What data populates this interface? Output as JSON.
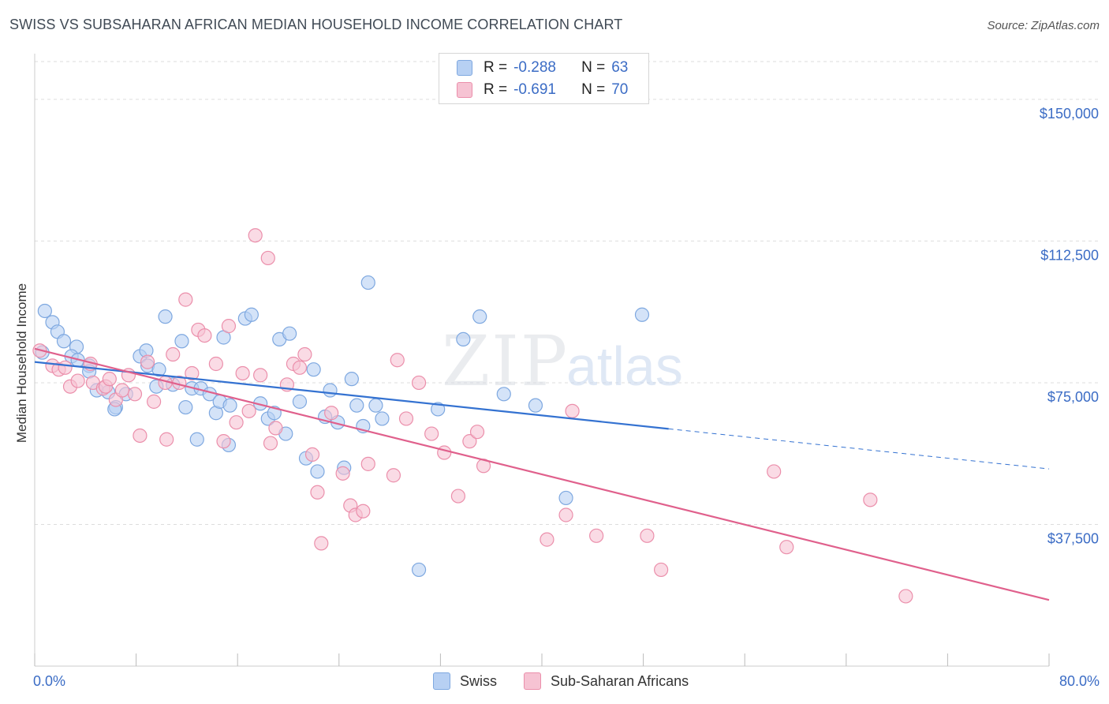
{
  "title": "SWISS VS SUBSAHARAN AFRICAN MEDIAN HOUSEHOLD INCOME CORRELATION CHART",
  "source": "Source: ZipAtlas.com",
  "watermark": {
    "zip": "ZIP",
    "atlas": "atlas"
  },
  "colors": {
    "swiss_fill": "#b7d0f3",
    "swiss_stroke": "#7ea8e0",
    "swiss_line": "#3472d1",
    "ssa_fill": "#f6c3d3",
    "ssa_stroke": "#eb8fab",
    "ssa_line": "#e0608c",
    "tick_text": "#3b6cc5",
    "grid": "#dddddd"
  },
  "legend": {
    "r_label": "R =",
    "n_label": "N =",
    "swiss": {
      "r": "-0.288",
      "n": "63"
    },
    "ssa": {
      "r": "-0.691",
      "n": "70"
    }
  },
  "bottom_legend": {
    "swiss": "Swiss",
    "ssa": "Sub-Saharan Africans"
  },
  "chart_data": {
    "type": "scatter",
    "title": "SWISS VS SUBSAHARAN AFRICAN MEDIAN HOUSEHOLD INCOME CORRELATION CHART",
    "xlabel": "",
    "ylabel": "Median Household Income",
    "xlim": [
      0,
      80
    ],
    "ylim": [
      0,
      160000
    ],
    "x_tick_labels": [
      "0.0%",
      "80.0%"
    ],
    "y_ticks": [
      37500,
      75000,
      112500,
      150000
    ],
    "y_tick_labels": [
      "$37,500",
      "$75,000",
      "$112,500",
      "$150,000"
    ],
    "grid": "horizontal dashed",
    "legend_position": "top-center",
    "series": [
      {
        "name": "Swiss",
        "r": -0.288,
        "n": 63,
        "trend": {
          "x0": 0,
          "y0": 80500,
          "x1": 50,
          "y1": 62800,
          "x_dash_end": 80,
          "y_dash_end": 52200
        },
        "points": [
          [
            0.6,
            83000
          ],
          [
            0.8,
            94000
          ],
          [
            1.4,
            91000
          ],
          [
            1.8,
            88500
          ],
          [
            2.3,
            86000
          ],
          [
            3.3,
            84500
          ],
          [
            2.9,
            82000
          ],
          [
            3.4,
            81000
          ],
          [
            4.3,
            79500
          ],
          [
            4.3,
            78000
          ],
          [
            4.9,
            73000
          ],
          [
            5.8,
            72500
          ],
          [
            6.4,
            68500
          ],
          [
            6.3,
            68000
          ],
          [
            7.2,
            72000
          ],
          [
            8.3,
            82000
          ],
          [
            8.8,
            83500
          ],
          [
            8.9,
            79500
          ],
          [
            9.8,
            78500
          ],
          [
            9.6,
            74000
          ],
          [
            10.3,
            92500
          ],
          [
            10.9,
            74500
          ],
          [
            11.6,
            86000
          ],
          [
            11.9,
            68500
          ],
          [
            12.4,
            73500
          ],
          [
            12.8,
            60000
          ],
          [
            13.1,
            73500
          ],
          [
            13.8,
            72000
          ],
          [
            14.3,
            67000
          ],
          [
            14.9,
            87000
          ],
          [
            14.6,
            70000
          ],
          [
            15.4,
            69000
          ],
          [
            15.3,
            58500
          ],
          [
            16.6,
            92000
          ],
          [
            17.1,
            93000
          ],
          [
            17.8,
            69500
          ],
          [
            18.4,
            65500
          ],
          [
            18.9,
            67000
          ],
          [
            19.3,
            86500
          ],
          [
            20.1,
            88000
          ],
          [
            19.8,
            61500
          ],
          [
            20.9,
            70000
          ],
          [
            21.4,
            55000
          ],
          [
            22.0,
            78500
          ],
          [
            22.3,
            51500
          ],
          [
            22.9,
            66000
          ],
          [
            23.3,
            73000
          ],
          [
            23.9,
            64500
          ],
          [
            24.4,
            52500
          ],
          [
            25.0,
            76000
          ],
          [
            25.4,
            69000
          ],
          [
            25.9,
            63500
          ],
          [
            26.3,
            101500
          ],
          [
            26.9,
            69000
          ],
          [
            27.4,
            65500
          ],
          [
            30.3,
            25500
          ],
          [
            31.8,
            68000
          ],
          [
            33.8,
            86500
          ],
          [
            35.1,
            92500
          ],
          [
            37.0,
            72000
          ],
          [
            39.5,
            69000
          ],
          [
            41.9,
            44500
          ],
          [
            47.9,
            93000
          ]
        ]
      },
      {
        "name": "Sub-Saharan Africans",
        "r": -0.691,
        "n": 70,
        "trend": {
          "x0": 0,
          "y0": 84000,
          "x1": 80,
          "y1": 17500
        },
        "points": [
          [
            0.4,
            83500
          ],
          [
            1.4,
            79500
          ],
          [
            1.9,
            78500
          ],
          [
            2.4,
            79000
          ],
          [
            2.8,
            74000
          ],
          [
            3.4,
            75500
          ],
          [
            4.4,
            80000
          ],
          [
            4.6,
            75000
          ],
          [
            5.4,
            73500
          ],
          [
            5.6,
            74000
          ],
          [
            5.9,
            76000
          ],
          [
            6.4,
            70500
          ],
          [
            6.9,
            73000
          ],
          [
            7.4,
            77000
          ],
          [
            7.9,
            72000
          ],
          [
            8.3,
            61000
          ],
          [
            8.9,
            80500
          ],
          [
            9.4,
            70000
          ],
          [
            10.3,
            75000
          ],
          [
            10.4,
            60000
          ],
          [
            10.9,
            82500
          ],
          [
            11.4,
            75000
          ],
          [
            11.9,
            97000
          ],
          [
            12.4,
            77500
          ],
          [
            12.9,
            89000
          ],
          [
            13.4,
            87500
          ],
          [
            14.3,
            80000
          ],
          [
            14.9,
            59500
          ],
          [
            15.3,
            90000
          ],
          [
            15.9,
            64500
          ],
          [
            16.4,
            77500
          ],
          [
            16.9,
            67500
          ],
          [
            17.4,
            114000
          ],
          [
            17.8,
            77000
          ],
          [
            18.4,
            108000
          ],
          [
            18.6,
            59000
          ],
          [
            19.0,
            63000
          ],
          [
            19.9,
            74500
          ],
          [
            20.4,
            80000
          ],
          [
            20.9,
            79000
          ],
          [
            21.3,
            82500
          ],
          [
            21.9,
            56000
          ],
          [
            22.3,
            46000
          ],
          [
            22.6,
            32500
          ],
          [
            23.4,
            67000
          ],
          [
            24.3,
            51000
          ],
          [
            24.9,
            42500
          ],
          [
            25.3,
            40000
          ],
          [
            25.9,
            41000
          ],
          [
            26.3,
            53500
          ],
          [
            28.3,
            50500
          ],
          [
            28.6,
            81000
          ],
          [
            29.3,
            65500
          ],
          [
            30.3,
            75000
          ],
          [
            31.3,
            61500
          ],
          [
            32.3,
            56500
          ],
          [
            33.4,
            45000
          ],
          [
            34.3,
            59500
          ],
          [
            34.9,
            62000
          ],
          [
            35.4,
            53000
          ],
          [
            40.4,
            33500
          ],
          [
            41.9,
            40000
          ],
          [
            42.4,
            67500
          ],
          [
            44.3,
            34500
          ],
          [
            48.3,
            34500
          ],
          [
            49.4,
            25500
          ],
          [
            58.3,
            51500
          ],
          [
            59.3,
            31500
          ],
          [
            65.9,
            44000
          ],
          [
            68.7,
            18500
          ]
        ]
      }
    ]
  }
}
